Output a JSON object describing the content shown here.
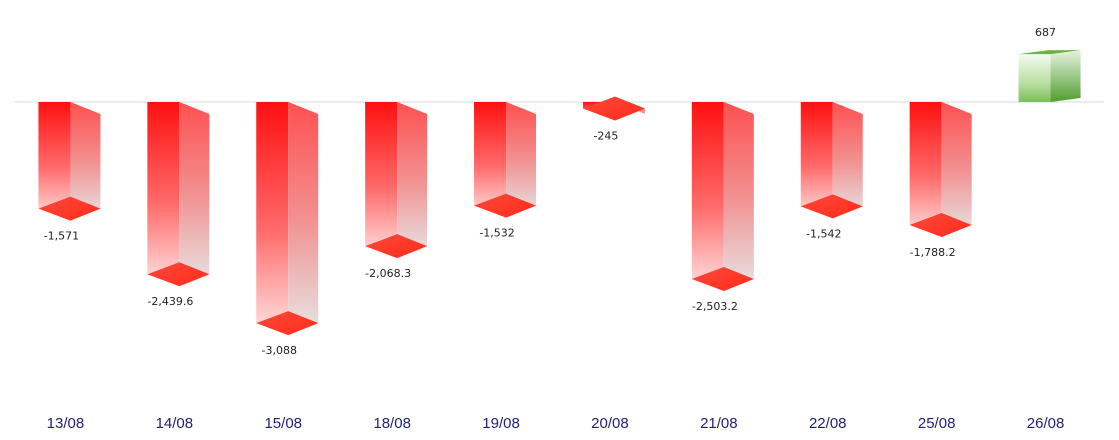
{
  "chart_data": {
    "type": "bar",
    "categories": [
      "13/08",
      "14/08",
      "15/08",
      "18/08",
      "19/08",
      "20/08",
      "21/08",
      "22/08",
      "25/08",
      "26/08"
    ],
    "values": [
      -1571,
      -2439.6,
      -3088,
      -2068.3,
      -1532,
      -245,
      -2503.2,
      -1542,
      -1788.2,
      687
    ],
    "value_labels": [
      "-1,571",
      "-2,439.6",
      "-3,088",
      "-2,068.3",
      "-1,532",
      "-245",
      "-2,503.2",
      "-1,542",
      "-1,788.2",
      "687"
    ],
    "title": "",
    "xlabel": "",
    "ylabel": "",
    "ylim": [
      -3088,
      687
    ],
    "grid": false,
    "style": "3d-bars",
    "colors": {
      "negative": "#ff1a1a",
      "negative_light": "#ffd6d6",
      "positive": "#6ab04c",
      "positive_light": "#eaf5e3",
      "baseline": "#d9d9d9",
      "category_text": "#1f1f7a"
    }
  }
}
